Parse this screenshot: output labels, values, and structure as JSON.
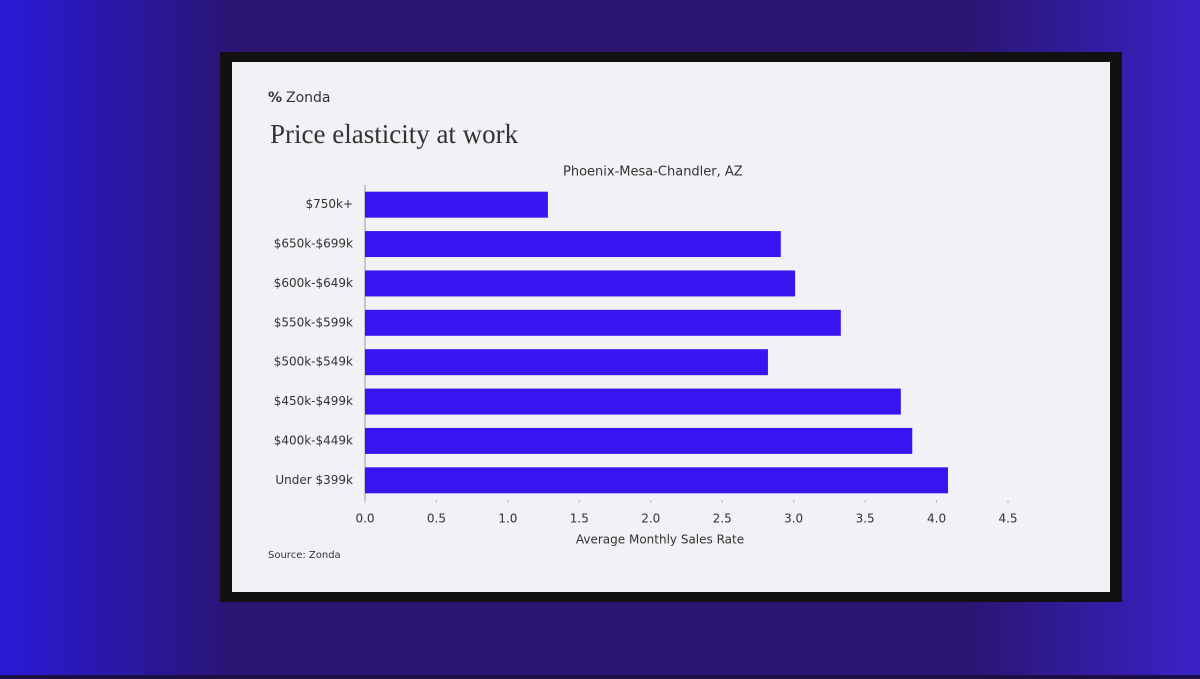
{
  "brand": "Zonda",
  "chart_data": {
    "type": "barh",
    "title": "Price elasticity at work",
    "subtitle": "Phoenix-Mesa-Chandler, AZ",
    "categories": [
      "$750k+",
      "$650k-$699k",
      "$600k-$649k",
      "$550k-$599k",
      "$500k-$549k",
      "$450k-$499k",
      "$400k-$449k",
      "Under $399k"
    ],
    "values": [
      1.28,
      2.91,
      3.01,
      3.33,
      2.82,
      3.75,
      3.83,
      4.08
    ],
    "color": "#3a14f0",
    "xlim": [
      0,
      4.5
    ],
    "xticks": [
      {
        "value": 0,
        "label": "0.0"
      },
      0.5,
      {
        "value": 1,
        "label": "1.0"
      },
      1.5,
      {
        "value": 2,
        "label": "2.0"
      },
      2.5,
      {
        "value": 3,
        "label": "3.0"
      },
      3.5,
      {
        "value": 4,
        "label": "4.0"
      },
      4.5
    ],
    "x_label": "Average Monthly Sales Rate",
    "source": "Source: Zonda"
  }
}
